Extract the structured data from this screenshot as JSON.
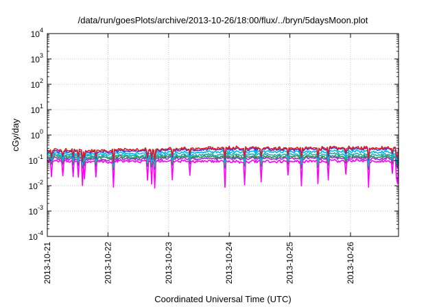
{
  "chart_data": {
    "type": "line",
    "title": "/data/run/goesPlots/archive/2013-10-26/18:00/flux/../bryn/5daysMoon.plot",
    "xlabel": "Coordinated Universal Time (UTC)",
    "ylabel": "cGy/day",
    "yscale": "log",
    "ylim": [
      0.0001,
      10000
    ],
    "y_ticks": [
      {
        "base": "10",
        "exp": "-4",
        "value": 0.0001
      },
      {
        "base": "10",
        "exp": "-3",
        "value": 0.001
      },
      {
        "base": "10",
        "exp": "-2",
        "value": 0.01
      },
      {
        "base": "10",
        "exp": "-1",
        "value": 0.1
      },
      {
        "base": "10",
        "exp": "0",
        "value": 1
      },
      {
        "base": "10",
        "exp": "1",
        "value": 10
      },
      {
        "base": "10",
        "exp": "2",
        "value": 100
      },
      {
        "base": "10",
        "exp": "3",
        "value": 1000
      },
      {
        "base": "10",
        "exp": "4",
        "value": 10000
      }
    ],
    "xlim": [
      "2013-10-21",
      "2013-10-26T19:00"
    ],
    "x_ticks": [
      "2013-10-21",
      "2013-10-22",
      "2013-10-23",
      "2013-10-24",
      "2013-10-25",
      "2013-10-26"
    ],
    "grid": true,
    "series": [
      {
        "color": "#e41a1c",
        "x": [
          "2013-10-21",
          "2013-10-22",
          "2013-10-23",
          "2013-10-24",
          "2013-10-25",
          "2013-10-26",
          "2013-10-26T19:00"
        ],
        "values": [
          0.25,
          0.25,
          0.28,
          0.31,
          0.3,
          0.31,
          0.31
        ]
      },
      {
        "color": "#3a3ae0",
        "x": [
          "2013-10-21",
          "2013-10-22",
          "2013-10-23",
          "2013-10-24",
          "2013-10-25",
          "2013-10-26",
          "2013-10-26T19:00"
        ],
        "values": [
          0.22,
          0.22,
          0.25,
          0.28,
          0.27,
          0.28,
          0.28
        ]
      },
      {
        "color": "#00b7eb",
        "x": [
          "2013-10-21",
          "2013-10-22",
          "2013-10-23",
          "2013-10-24",
          "2013-10-25",
          "2013-10-26",
          "2013-10-26T19:00"
        ],
        "values": [
          0.19,
          0.18,
          0.2,
          0.22,
          0.22,
          0.22,
          0.22
        ]
      },
      {
        "color": "#20b2aa",
        "x": [
          "2013-10-21",
          "2013-10-22",
          "2013-10-23",
          "2013-10-24",
          "2013-10-25",
          "2013-10-26",
          "2013-10-26T19:00"
        ],
        "values": [
          0.16,
          0.15,
          0.16,
          0.17,
          0.17,
          0.17,
          0.17
        ]
      },
      {
        "color": "#2e8b57",
        "x": [
          "2013-10-21",
          "2013-10-22",
          "2013-10-23",
          "2013-10-24",
          "2013-10-25",
          "2013-10-26",
          "2013-10-26T19:00"
        ],
        "values": [
          0.14,
          0.13,
          0.14,
          0.14,
          0.14,
          0.14,
          0.14
        ]
      },
      {
        "color": "#9932cc",
        "x": [
          "2013-10-21",
          "2013-10-22",
          "2013-10-23",
          "2013-10-24",
          "2013-10-25",
          "2013-10-26",
          "2013-10-26T19:00"
        ],
        "values": [
          0.12,
          0.11,
          0.12,
          0.12,
          0.12,
          0.12,
          0.12
        ]
      },
      {
        "color": "#ff00ff",
        "x": [
          "2013-10-21",
          "2013-10-22",
          "2013-10-23",
          "2013-10-24",
          "2013-10-25",
          "2013-10-26",
          "2013-10-26T19:00"
        ],
        "values": [
          0.095,
          0.09,
          0.095,
          0.09,
          0.09,
          0.095,
          0.095
        ]
      }
    ]
  }
}
